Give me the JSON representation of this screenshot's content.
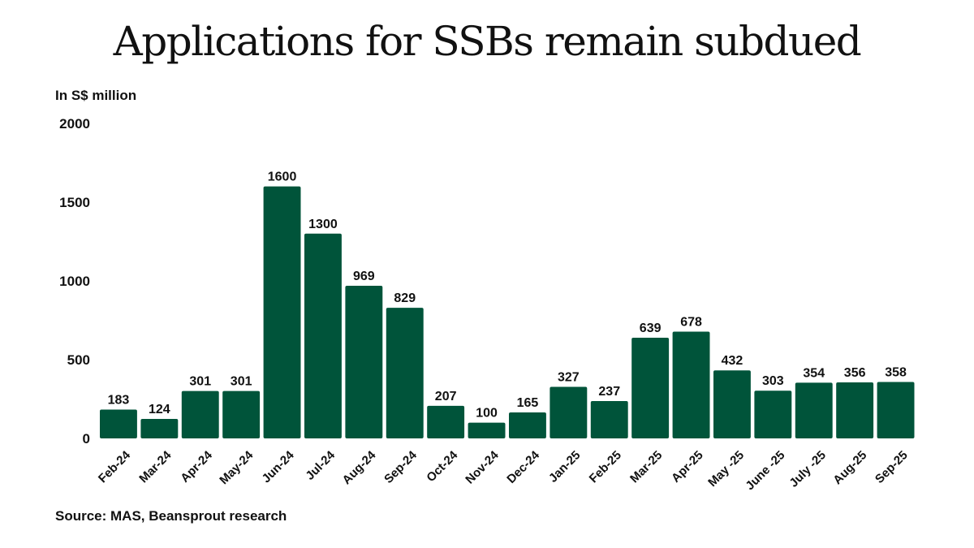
{
  "title": "Applications for SSBs remain subdued",
  "unit_label": "In S$ million",
  "source": "Source: MAS, Beansprout research",
  "colors": {
    "bar": "#00543a",
    "text": "#111111"
  },
  "chart_data": {
    "type": "bar",
    "title": "Applications for SSBs remain subdued",
    "ylabel": "In S$ million",
    "xlabel": "",
    "ylim": [
      0,
      2000
    ],
    "yticks": [
      0,
      500,
      1000,
      1500,
      2000
    ],
    "grid": false,
    "categories": [
      "Feb-24",
      "Mar-24",
      "Apr-24",
      "May-24",
      "Jun-24",
      "Jul-24",
      "Aug-24",
      "Sep-24",
      "Oct-24",
      "Nov-24",
      "Dec-24",
      "Jan-25",
      "Feb-25",
      "Mar-25",
      "Apr-25",
      "May -25",
      "June -25",
      "July -25",
      "Aug-25",
      "Sep-25"
    ],
    "values": [
      183,
      124,
      301,
      301,
      1600,
      1300,
      969,
      829,
      207,
      100,
      165,
      327,
      237,
      639,
      678,
      432,
      303,
      354,
      356,
      358
    ]
  }
}
